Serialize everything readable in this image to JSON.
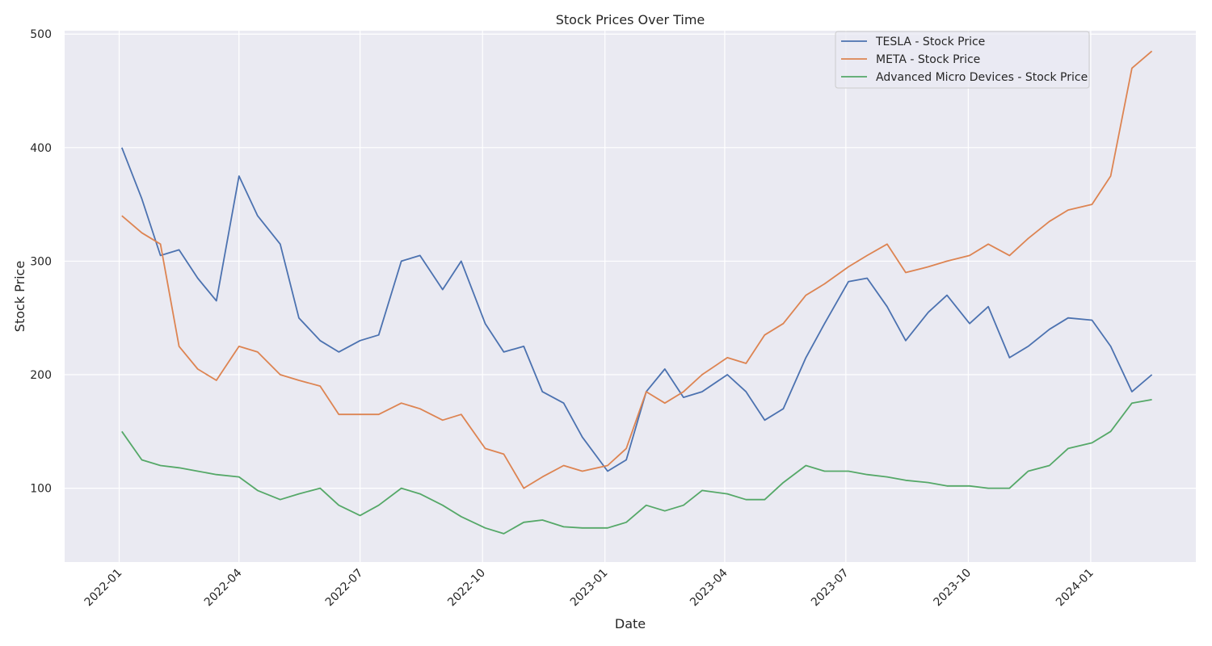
{
  "chart_data": {
    "type": "line",
    "title": "Stock Prices Over Time",
    "xlabel": "Date",
    "ylabel": "Stock Price",
    "xlim": [
      "2021-11-21",
      "2024-03-20"
    ],
    "ylim": [
      35,
      503
    ],
    "x_ticks": [
      "2022-01",
      "2022-04",
      "2022-07",
      "2022-10",
      "2023-01",
      "2023-04",
      "2023-07",
      "2023-10",
      "2024-01"
    ],
    "y_ticks": [
      100,
      200,
      300,
      400,
      500
    ],
    "grid": true,
    "legend_position": "top-right",
    "x": [
      "2022-01-03",
      "2022-01-18",
      "2022-02-01",
      "2022-02-15",
      "2022-03-01",
      "2022-03-15",
      "2022-04-01",
      "2022-04-15",
      "2022-05-02",
      "2022-05-16",
      "2022-06-01",
      "2022-06-15",
      "2022-07-01",
      "2022-07-15",
      "2022-08-01",
      "2022-08-15",
      "2022-09-01",
      "2022-09-15",
      "2022-10-03",
      "2022-10-17",
      "2022-11-01",
      "2022-11-15",
      "2022-12-01",
      "2022-12-15",
      "2023-01-03",
      "2023-01-17",
      "2023-02-01",
      "2023-02-15",
      "2023-03-01",
      "2023-03-15",
      "2023-04-03",
      "2023-04-17",
      "2023-05-01",
      "2023-05-15",
      "2023-06-01",
      "2023-06-15",
      "2023-07-03",
      "2023-07-17",
      "2023-08-01",
      "2023-08-15",
      "2023-09-01",
      "2023-09-15",
      "2023-10-02",
      "2023-10-16",
      "2023-11-01",
      "2023-11-15",
      "2023-12-01",
      "2023-12-15",
      "2024-01-02",
      "2024-01-16",
      "2024-02-01",
      "2024-02-16"
    ],
    "series": [
      {
        "name": "TESLA - Stock Price",
        "color": "#4c72b0",
        "values": [
          400,
          355,
          305,
          310,
          285,
          265,
          375,
          340,
          315,
          250,
          230,
          220,
          230,
          235,
          300,
          305,
          275,
          300,
          245,
          220,
          225,
          185,
          175,
          145,
          115,
          125,
          185,
          205,
          180,
          185,
          200,
          185,
          160,
          170,
          215,
          245,
          282,
          285,
          260,
          230,
          255,
          270,
          245,
          260,
          215,
          225,
          240,
          250,
          248,
          225,
          185,
          200
        ]
      },
      {
        "name": "META - Stock Price",
        "color": "#dd8452",
        "values": [
          340,
          325,
          315,
          225,
          205,
          195,
          225,
          220,
          200,
          195,
          190,
          165,
          165,
          165,
          175,
          170,
          160,
          165,
          135,
          130,
          100,
          110,
          120,
          115,
          120,
          135,
          185,
          175,
          185,
          200,
          215,
          210,
          235,
          245,
          270,
          280,
          295,
          305,
          315,
          290,
          295,
          300,
          305,
          315,
          305,
          320,
          335,
          345,
          350,
          375,
          470,
          485
        ]
      },
      {
        "name": "Advanced Micro Devices - Stock Price",
        "color": "#55a868",
        "values": [
          150,
          125,
          120,
          118,
          115,
          112,
          110,
          98,
          90,
          95,
          100,
          85,
          76,
          85,
          100,
          95,
          85,
          75,
          65,
          60,
          70,
          72,
          66,
          65,
          65,
          70,
          85,
          80,
          85,
          98,
          95,
          90,
          90,
          105,
          120,
          115,
          115,
          112,
          110,
          107,
          105,
          102,
          102,
          100,
          100,
          115,
          120,
          135,
          140,
          150,
          175,
          178
        ]
      }
    ]
  }
}
